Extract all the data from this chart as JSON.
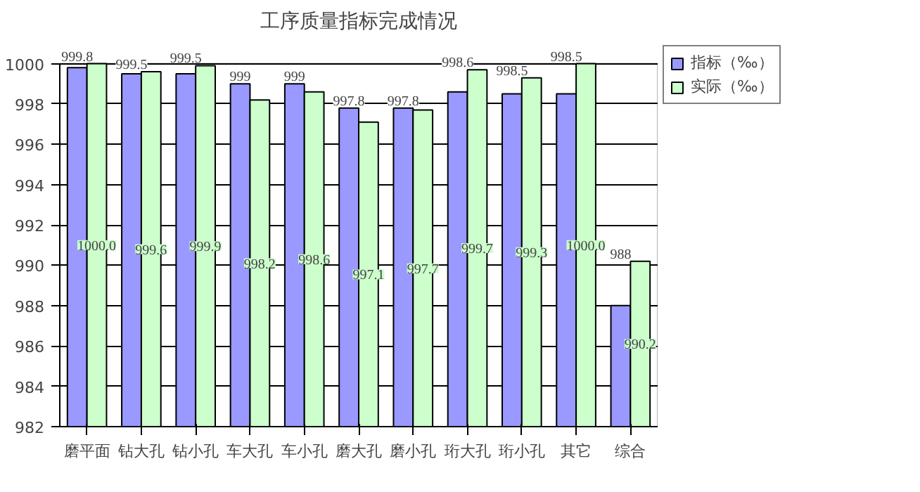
{
  "chart_data": {
    "type": "bar",
    "title": "工序质量指标完成情况",
    "categories": [
      "磨平面",
      "钻大孔",
      "钻小孔",
      "车大孔",
      "车小孔",
      "磨大孔",
      "磨小孔",
      "珩大孔",
      "珩小孔",
      "其它",
      "综合"
    ],
    "series": [
      {
        "name": "指标（‰）",
        "color": "#9999ff",
        "values": [
          999.8,
          999.5,
          999.5,
          999,
          999,
          997.8,
          997.8,
          998.6,
          998.5,
          998.5,
          988
        ],
        "value_labels": [
          "999.8",
          "999.5",
          "999.5",
          "999",
          "999",
          "997.8",
          "997.8",
          "998.6",
          "998.5",
          "998.5",
          "988"
        ]
      },
      {
        "name": "实际（‰）",
        "color": "#ccffcc",
        "values": [
          1000,
          999.6,
          999.9,
          998.2,
          998.6,
          997.1,
          997.7,
          999.7,
          999.3,
          1000,
          990.2
        ],
        "value_labels": [
          "1000.0",
          "999.6",
          "999.9",
          "998.2",
          "998.6",
          "997.1",
          "997.7",
          "999.7",
          "999.3",
          "1000.0",
          "990.2"
        ]
      }
    ],
    "ylim": [
      982,
      1000
    ],
    "yticks": [
      982,
      984,
      986,
      988,
      990,
      992,
      994,
      996,
      998,
      1000
    ],
    "grid": "y",
    "legend": "top right"
  }
}
